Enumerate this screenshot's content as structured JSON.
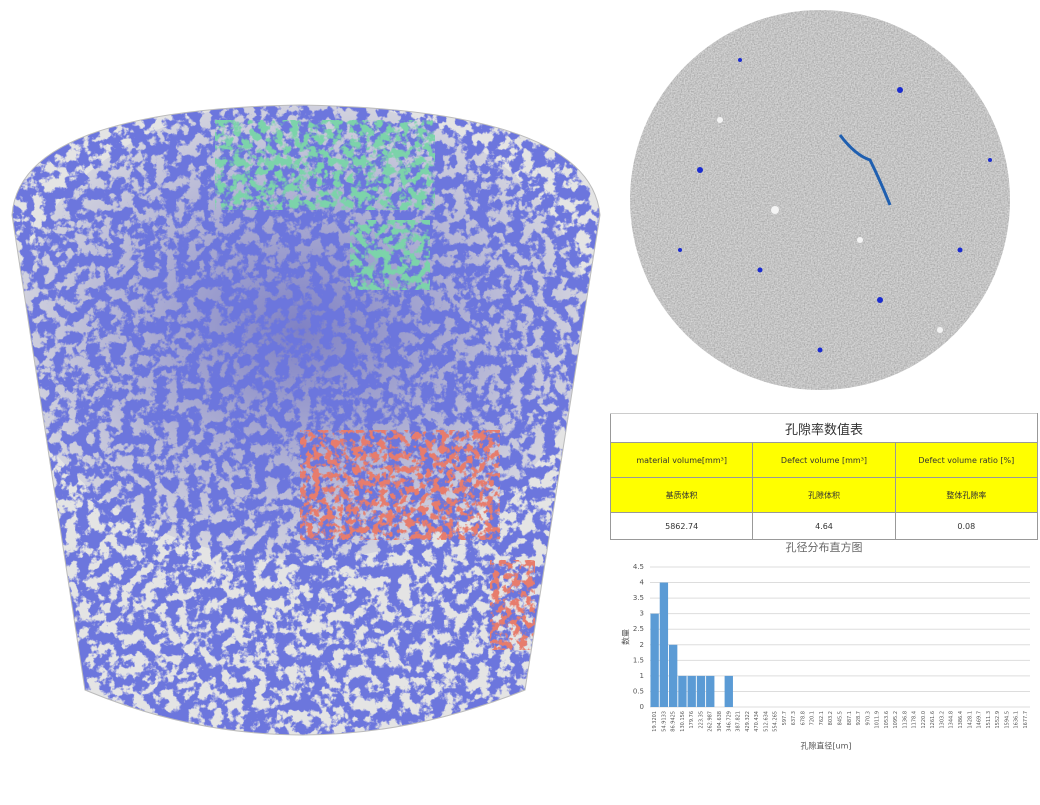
{
  "table": {
    "title": "孔隙率数值表",
    "header": [
      "material volume[mm³]",
      "Defect volume [mm³]",
      "Defect volume ratio [%]"
    ],
    "rows": [
      [
        "基质体积",
        "孔隙体积",
        "整体孔隙率"
      ],
      [
        5862.74,
        4.64,
        0.08
      ]
    ]
  },
  "chart_data": {
    "type": "bar",
    "title": "孔径分布直方图",
    "x_label": "孔隙直径[um]",
    "y_label": "数量",
    "categories": [
      "19.3201",
      "54.9133",
      "86.9425",
      "130.156",
      "179.76",
      "223.35",
      "262.987",
      "304.638",
      "346.729",
      "387.821",
      "429.322",
      "470.434",
      "512.634",
      "554.265",
      "597.7",
      "637.3",
      "678.8",
      "720.1",
      "762.1",
      "803.2",
      "845.5",
      "887.1",
      "928.7",
      "970.3",
      "1011.9",
      "1053.6",
      "1095.2",
      "1136.8",
      "1178.4",
      "1220.0",
      "1261.6",
      "1303.2",
      "1344.8",
      "1386.4",
      "1428.1",
      "1469.7",
      "1511.3",
      "1552.9",
      "1594.5",
      "1636.1",
      "1677.7"
    ],
    "values": [
      3,
      4,
      2,
      1,
      1,
      1,
      1,
      0,
      1,
      0,
      0,
      0,
      0,
      0,
      0,
      0,
      0,
      0,
      0,
      0,
      0,
      0,
      0,
      0,
      0,
      0,
      0,
      0,
      0,
      0,
      0,
      0,
      0,
      0,
      0,
      0,
      0,
      0,
      0,
      0,
      0
    ],
    "color": "#5b9bd5",
    "ylim": [
      0,
      4.5
    ],
    "yticks": [
      0,
      0.5,
      1,
      1.5,
      2,
      2.5,
      3,
      3.5,
      4,
      4.5
    ],
    "grid": true
  }
}
